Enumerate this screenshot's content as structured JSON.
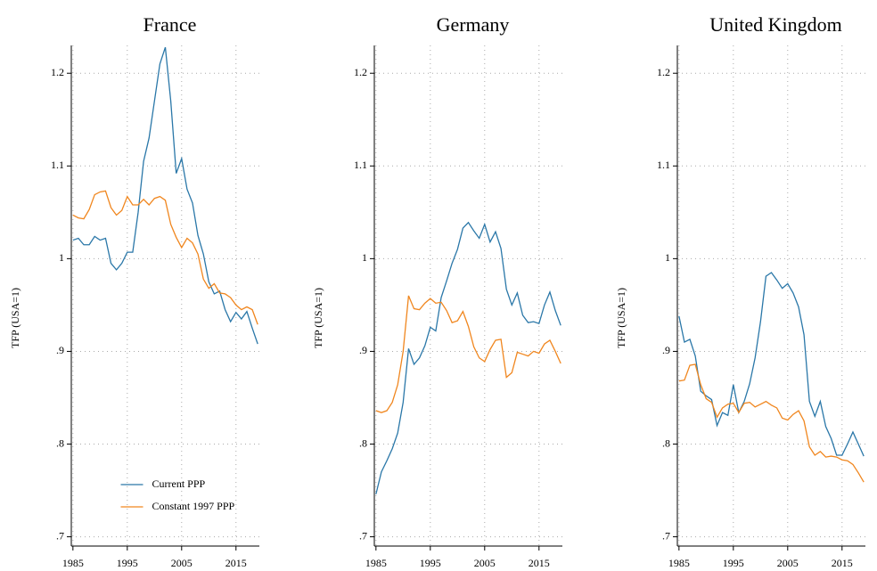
{
  "chart_data": [
    {
      "type": "line",
      "title": "France",
      "ylabel": "TFP (USA=1)",
      "x": [
        1985,
        1986,
        1987,
        1988,
        1989,
        1990,
        1991,
        1992,
        1993,
        1994,
        1995,
        1996,
        1997,
        1998,
        1999,
        2000,
        2001,
        2002,
        2003,
        2004,
        2005,
        2006,
        2007,
        2008,
        2009,
        2010,
        2011,
        2012,
        2013,
        2014,
        2015,
        2016,
        2017,
        2018,
        2019
      ],
      "series": [
        {
          "name": "Current PPP",
          "color": "#2a77a8",
          "values": [
            1.02,
            1.022,
            1.015,
            1.015,
            1.024,
            1.02,
            1.022,
            0.995,
            0.988,
            0.995,
            1.007,
            1.007,
            1.05,
            1.105,
            1.13,
            1.17,
            1.21,
            1.228,
            1.17,
            1.092,
            1.108,
            1.075,
            1.06,
            1.025,
            1.005,
            0.975,
            0.962,
            0.965,
            0.945,
            0.932,
            0.942,
            0.935,
            0.943,
            0.925,
            0.908
          ]
        },
        {
          "name": "Constant 1997 PPP",
          "color": "#f0861e",
          "values": [
            1.047,
            1.044,
            1.043,
            1.053,
            1.069,
            1.072,
            1.073,
            1.055,
            1.047,
            1.052,
            1.067,
            1.058,
            1.058,
            1.064,
            1.058,
            1.065,
            1.067,
            1.063,
            1.037,
            1.023,
            1.012,
            1.022,
            1.017,
            1.005,
            0.978,
            0.968,
            0.973,
            0.963,
            0.962,
            0.958,
            0.95,
            0.945,
            0.948,
            0.945,
            0.929
          ]
        }
      ],
      "xlim": [
        1984.7,
        2019.3
      ],
      "xticks": [
        1985,
        1995,
        2005,
        2015
      ],
      "ylim": [
        0.69,
        1.23
      ],
      "yticks": [
        {
          "value": 0.7,
          "label": ".7"
        },
        {
          "value": 0.8,
          "label": ".8"
        },
        {
          "value": 0.9,
          "label": ".9"
        },
        1,
        1.1,
        1.2
      ],
      "grid": true,
      "legend": "lower center"
    },
    {
      "type": "line",
      "title": "Germany",
      "ylabel": "TFP (USA=1)",
      "x": [
        1985,
        1986,
        1987,
        1988,
        1989,
        1990,
        1991,
        1992,
        1993,
        1994,
        1995,
        1996,
        1997,
        1998,
        1999,
        2000,
        2001,
        2002,
        2003,
        2004,
        2005,
        2006,
        2007,
        2008,
        2009,
        2010,
        2011,
        2012,
        2013,
        2014,
        2015,
        2016,
        2017,
        2018,
        2019
      ],
      "series": [
        {
          "color": "#2a77a8",
          "values": [
            0.746,
            0.77,
            0.782,
            0.795,
            0.812,
            0.845,
            0.903,
            0.886,
            0.893,
            0.906,
            0.926,
            0.922,
            0.958,
            0.976,
            0.995,
            1.01,
            1.033,
            1.039,
            1.03,
            1.022,
            1.037,
            1.018,
            1.029,
            1.011,
            0.967,
            0.95,
            0.963,
            0.939,
            0.931,
            0.932,
            0.93,
            0.95,
            0.964,
            0.944,
            0.928
          ]
        },
        {
          "color": "#f0861e",
          "values": [
            0.836,
            0.834,
            0.836,
            0.845,
            0.864,
            0.9,
            0.96,
            0.946,
            0.945,
            0.952,
            0.957,
            0.952,
            0.953,
            0.944,
            0.931,
            0.933,
            0.943,
            0.927,
            0.905,
            0.893,
            0.889,
            0.902,
            0.912,
            0.913,
            0.872,
            0.877,
            0.899,
            0.897,
            0.895,
            0.9,
            0.898,
            0.908,
            0.912,
            0.9,
            0.887
          ]
        }
      ],
      "xlim": [
        1984.7,
        2019.3
      ],
      "xticks": [
        1985,
        1995,
        2005,
        2015
      ],
      "ylim": [
        0.69,
        1.23
      ],
      "yticks": [
        {
          "value": 0.7,
          "label": ".7"
        },
        {
          "value": 0.8,
          "label": ".8"
        },
        {
          "value": 0.9,
          "label": ".9"
        },
        1,
        1.1,
        1.2
      ],
      "grid": true
    },
    {
      "type": "line",
      "title": "United Kingdom",
      "ylabel": "TFP (USA=1)",
      "x": [
        1985,
        1986,
        1987,
        1988,
        1989,
        1990,
        1991,
        1992,
        1993,
        1994,
        1995,
        1996,
        1997,
        1998,
        1999,
        2000,
        2001,
        2002,
        2003,
        2004,
        2005,
        2006,
        2007,
        2008,
        2009,
        2010,
        2011,
        2012,
        2013,
        2014,
        2015,
        2016,
        2017,
        2018,
        2019
      ],
      "series": [
        {
          "color": "#2a77a8",
          "values": [
            0.938,
            0.91,
            0.913,
            0.895,
            0.857,
            0.852,
            0.848,
            0.82,
            0.834,
            0.831,
            0.864,
            0.834,
            0.846,
            0.865,
            0.893,
            0.932,
            0.981,
            0.985,
            0.977,
            0.968,
            0.973,
            0.963,
            0.948,
            0.918,
            0.846,
            0.83,
            0.846,
            0.819,
            0.806,
            0.788,
            0.788,
            0.8,
            0.813,
            0.8,
            0.787
          ]
        },
        {
          "color": "#f0861e",
          "values": [
            0.868,
            0.869,
            0.885,
            0.886,
            0.864,
            0.849,
            0.845,
            0.829,
            0.839,
            0.843,
            0.844,
            0.834,
            0.844,
            0.845,
            0.84,
            0.843,
            0.846,
            0.842,
            0.839,
            0.828,
            0.826,
            0.832,
            0.836,
            0.825,
            0.797,
            0.788,
            0.792,
            0.786,
            0.787,
            0.786,
            0.783,
            0.782,
            0.778,
            0.769,
            0.759
          ]
        }
      ],
      "xlim": [
        1984.7,
        2019.3
      ],
      "xticks": [
        1985,
        1995,
        2005,
        2015
      ],
      "ylim": [
        0.69,
        1.23
      ],
      "yticks": [
        {
          "value": 0.7,
          "label": ".7"
        },
        {
          "value": 0.8,
          "label": ".8"
        },
        {
          "value": 0.9,
          "label": ".9"
        },
        1,
        1.1,
        1.2
      ],
      "grid": true
    }
  ]
}
